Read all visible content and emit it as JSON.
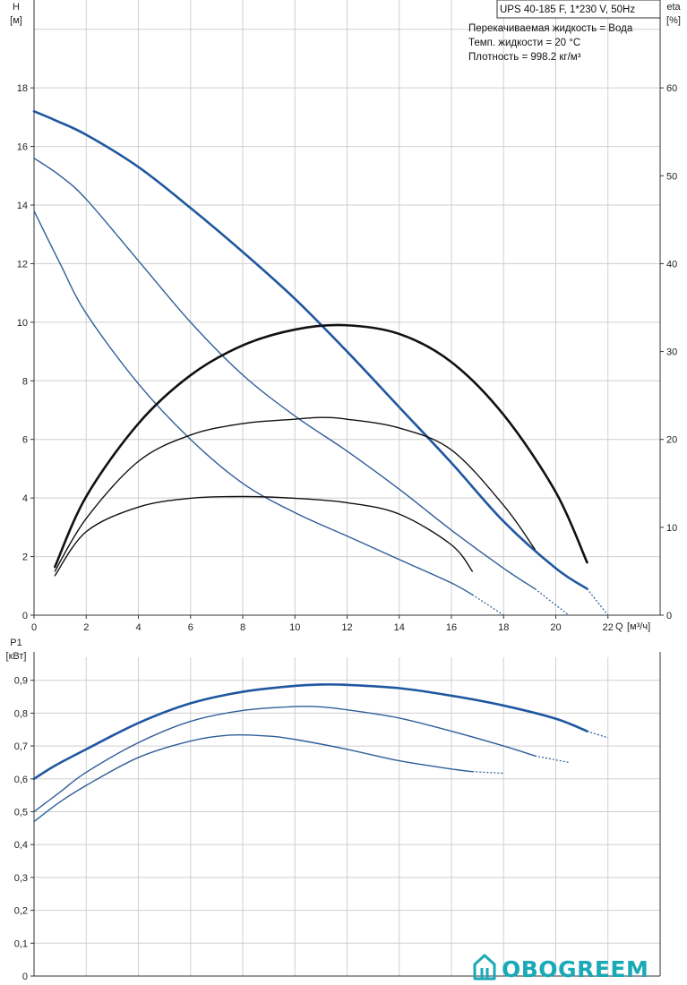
{
  "chart_data": [
    {
      "type": "line",
      "title": "UPS 40-185 F, 1*230 V, 50Hz",
      "info_lines": [
        "Перекачиваемая жидкость = Вода",
        "Темп. жидкости = 20 °C",
        "Плотность = 998.2 кг/м³"
      ],
      "y_label": "H",
      "y_unit": "[м]",
      "y2_label": "eta",
      "y2_unit": "[%]",
      "x_label": "Q",
      "x_unit": "[м³/ч]",
      "xlim": [
        0,
        24
      ],
      "ylim": [
        0,
        21
      ],
      "y2lim": [
        0,
        70
      ],
      "x_ticks": [
        "0",
        "2",
        "4",
        "6",
        "8",
        "10",
        "12",
        "14",
        "16",
        "18",
        "20",
        "22"
      ],
      "y_ticks": [
        "0",
        "2",
        "4",
        "6",
        "8",
        "10",
        "12",
        "14",
        "16",
        "18"
      ],
      "y2_ticks": [
        "0",
        "10",
        "20",
        "30",
        "40",
        "50",
        "60"
      ],
      "grid": true,
      "series": [
        {
          "kind": "head",
          "axis": "left",
          "color": "#1f57a0",
          "stroke": 2.6,
          "x": [
            0,
            0.8,
            2,
            4,
            6,
            8,
            10,
            12,
            14,
            16,
            18,
            20,
            21.2
          ],
          "y": [
            17.2,
            16.9,
            16.4,
            15.3,
            13.9,
            12.4,
            10.8,
            9.0,
            7.1,
            5.2,
            3.2,
            1.6,
            0.9
          ],
          "dashed_x": [
            21.2,
            22.0
          ],
          "dashed_y": [
            0.9,
            0.0
          ]
        },
        {
          "kind": "head",
          "axis": "left",
          "color": "#2e5d99",
          "stroke": 1.4,
          "x": [
            0,
            1,
            2,
            4,
            6,
            8,
            10,
            12,
            14,
            16,
            18,
            19.2
          ],
          "y": [
            15.6,
            15.0,
            14.2,
            12.1,
            10.0,
            8.2,
            6.8,
            5.6,
            4.3,
            2.9,
            1.6,
            0.9
          ],
          "dashed_x": [
            19.2,
            20.5
          ],
          "dashed_y": [
            0.9,
            0.0
          ]
        },
        {
          "kind": "head",
          "axis": "left",
          "color": "#2e5d99",
          "stroke": 1.4,
          "x": [
            0,
            1,
            2,
            4,
            6,
            8,
            10,
            12,
            14,
            16,
            16.8
          ],
          "y": [
            13.8,
            12.0,
            10.3,
            7.9,
            6.0,
            4.5,
            3.5,
            2.7,
            1.9,
            1.1,
            0.7
          ],
          "dashed_x": [
            16.8,
            18.0
          ],
          "dashed_y": [
            0.7,
            0.0
          ]
        },
        {
          "kind": "efficiency",
          "axis": "right",
          "color": "#111111",
          "stroke": 2.6,
          "x": [
            0.8,
            2,
            4,
            6,
            8,
            10,
            11.9,
            14,
            16,
            18,
            20,
            21.2
          ],
          "y": [
            5.5,
            13.5,
            21.8,
            27.3,
            30.7,
            32.5,
            33.0,
            32.0,
            28.8,
            22.8,
            14.0,
            6.0
          ]
        },
        {
          "kind": "efficiency",
          "axis": "right",
          "color": "#111111",
          "stroke": 1.4,
          "x": [
            0.8,
            2,
            4,
            6,
            8,
            10,
            11,
            12,
            14,
            16,
            18,
            19.2
          ],
          "y": [
            5.0,
            11.0,
            17.5,
            20.5,
            21.8,
            22.3,
            22.5,
            22.3,
            21.3,
            18.8,
            12.5,
            7.5
          ]
        },
        {
          "kind": "efficiency",
          "axis": "right",
          "color": "#111111",
          "stroke": 1.4,
          "x": [
            0.8,
            2,
            4,
            6,
            8,
            10,
            12,
            14,
            16,
            16.8
          ],
          "y": [
            4.5,
            9.5,
            12.3,
            13.3,
            13.5,
            13.3,
            12.8,
            11.5,
            8.0,
            5.0
          ]
        }
      ]
    },
    {
      "type": "line",
      "y_label": "P1",
      "y_unit": "[кВт]",
      "xlim": [
        0,
        24
      ],
      "ylim": [
        0,
        0.97
      ],
      "y_ticks": [
        "0",
        "0,1",
        "0,2",
        "0,3",
        "0,4",
        "0,5",
        "0,6",
        "0,7",
        "0,8",
        "0,9"
      ],
      "grid": true,
      "series": [
        {
          "color": "#1f57a0",
          "stroke": 2.6,
          "x": [
            0,
            0.8,
            2,
            4,
            6,
            8,
            10,
            11,
            12,
            14,
            16,
            18,
            20,
            21.2
          ],
          "y": [
            0.6,
            0.64,
            0.69,
            0.77,
            0.83,
            0.865,
            0.883,
            0.887,
            0.886,
            0.876,
            0.853,
            0.823,
            0.783,
            0.745
          ],
          "dashed_x": [
            21.2,
            22.0
          ],
          "dashed_y": [
            0.745,
            0.725
          ]
        },
        {
          "color": "#2e5d99",
          "stroke": 1.4,
          "x": [
            0,
            1,
            2,
            4,
            6,
            8,
            10,
            11,
            12,
            14,
            16,
            18,
            19.2
          ],
          "y": [
            0.5,
            0.56,
            0.62,
            0.71,
            0.775,
            0.808,
            0.82,
            0.819,
            0.81,
            0.785,
            0.745,
            0.7,
            0.67
          ],
          "dashed_x": [
            19.2,
            20.5
          ],
          "dashed_y": [
            0.67,
            0.65
          ]
        },
        {
          "color": "#2e5d99",
          "stroke": 1.4,
          "x": [
            0,
            1,
            2,
            4,
            6,
            7.5,
            9,
            10,
            12,
            14,
            16,
            16.8
          ],
          "y": [
            0.47,
            0.53,
            0.58,
            0.665,
            0.715,
            0.733,
            0.73,
            0.72,
            0.69,
            0.655,
            0.63,
            0.622
          ],
          "dashed_x": [
            16.8,
            18.0
          ],
          "dashed_y": [
            0.622,
            0.617
          ]
        }
      ]
    }
  ],
  "watermark": {
    "text": "OBOGREEM",
    "color": "#1aa9b7"
  }
}
